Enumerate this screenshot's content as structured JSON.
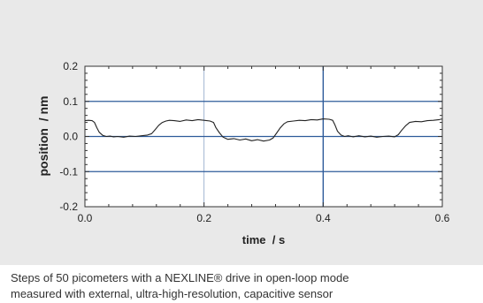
{
  "chart_data": {
    "type": "line",
    "title": "",
    "xlabel": "time  / s",
    "ylabel": "position  / nm",
    "xlim": [
      0,
      0.6
    ],
    "ylim": [
      -0.2,
      0.2
    ],
    "xticks": [
      "0.0",
      "0.2",
      "0.4",
      "0.6"
    ],
    "yticks": [
      "0.2",
      "0.1",
      "0.0",
      "-0.1",
      "-0.2"
    ],
    "grid": "partial",
    "legend": "none",
    "colors": {
      "line": "#222222",
      "grid": "#2e5b9a",
      "background": "#e9e9e9"
    },
    "series": [
      {
        "x": [
          0.0,
          0.006,
          0.012,
          0.016,
          0.02,
          0.024,
          0.03,
          0.036,
          0.042,
          0.048,
          0.055,
          0.065,
          0.075,
          0.085,
          0.095,
          0.105,
          0.112,
          0.118,
          0.124,
          0.13,
          0.136,
          0.142,
          0.15,
          0.16,
          0.17,
          0.18,
          0.19,
          0.2,
          0.21,
          0.216,
          0.22,
          0.226,
          0.232,
          0.24,
          0.25,
          0.26,
          0.27,
          0.28,
          0.29,
          0.3,
          0.31,
          0.316,
          0.322,
          0.328,
          0.334,
          0.34,
          0.35,
          0.36,
          0.37,
          0.38,
          0.39,
          0.4,
          0.41,
          0.416,
          0.42,
          0.424,
          0.43,
          0.436,
          0.442,
          0.45,
          0.46,
          0.47,
          0.48,
          0.49,
          0.5,
          0.51,
          0.52,
          0.526,
          0.532,
          0.538,
          0.545,
          0.555,
          0.565,
          0.575,
          0.585,
          0.595,
          0.6
        ],
        "y": [
          0.045,
          0.046,
          0.045,
          0.04,
          0.025,
          0.012,
          0.003,
          0.0,
          0.001,
          -0.001,
          0.0,
          -0.002,
          0.001,
          0.0,
          0.002,
          0.004,
          0.008,
          0.02,
          0.032,
          0.04,
          0.044,
          0.046,
          0.045,
          0.043,
          0.047,
          0.045,
          0.048,
          0.046,
          0.044,
          0.04,
          0.025,
          0.01,
          -0.002,
          -0.008,
          -0.006,
          -0.01,
          -0.007,
          -0.012,
          -0.009,
          -0.013,
          -0.01,
          -0.004,
          0.01,
          0.025,
          0.036,
          0.042,
          0.044,
          0.046,
          0.045,
          0.048,
          0.047,
          0.05,
          0.049,
          0.046,
          0.032,
          0.015,
          0.004,
          0.0,
          0.002,
          -0.001,
          0.002,
          -0.001,
          0.001,
          -0.002,
          0.0,
          0.001,
          -0.001,
          0.005,
          0.018,
          0.03,
          0.04,
          0.043,
          0.042,
          0.045,
          0.046,
          0.048,
          0.05
        ]
      }
    ],
    "gridlines": {
      "horizontal": [
        0.1,
        0.0,
        -0.1
      ],
      "vertical": [
        0.2,
        0.4
      ]
    }
  },
  "caption": {
    "line1": "Steps of 50 picometers with a NEXLINE® drive in open-loop mode",
    "line2": "measured with external, ultra-high-resolution, capacitive sensor"
  }
}
